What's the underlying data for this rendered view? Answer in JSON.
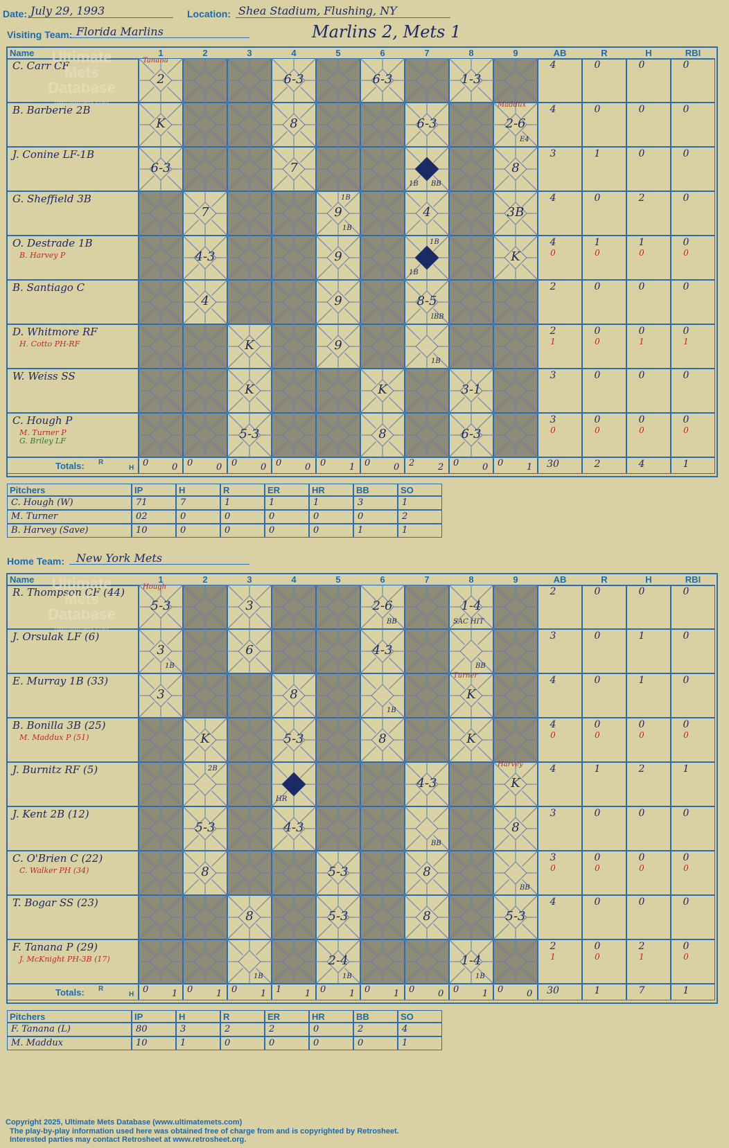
{
  "header": {
    "date_label": "Date:",
    "date": "July 29, 1993",
    "location_label": "Location:",
    "location": "Shea Stadium, Flushing, NY",
    "score": "Marlins 2, Mets 1"
  },
  "visiting": {
    "label": "Visiting Team:",
    "team": "Florida Marlins",
    "batters": [
      {
        "name": "C. Carr CF",
        "ab": "4",
        "r": "0",
        "h": "0",
        "rbi": "0"
      },
      {
        "name": "B. Barberie 2B",
        "ab": "4",
        "r": "0",
        "h": "0",
        "rbi": "0"
      },
      {
        "name": "J. Conine LF-1B",
        "ab": "3",
        "r": "1",
        "h": "0",
        "rbi": "0"
      },
      {
        "name": "G. Sheffield 3B",
        "ab": "4",
        "r": "0",
        "h": "2",
        "rbi": "0"
      },
      {
        "name": "O. Destrade 1B",
        "sub": "B. Harvey P",
        "ab": "4",
        "r": "1",
        "h": "1",
        "rbi": "0",
        "sab": "0",
        "sr": "0",
        "sh": "0",
        "srbi": "0"
      },
      {
        "name": "B. Santiago C",
        "ab": "2",
        "r": "0",
        "h": "0",
        "rbi": "0"
      },
      {
        "name": "D. Whitmore RF",
        "sub": "H. Cotto PH-RF",
        "ab": "2",
        "r": "0",
        "h": "0",
        "rbi": "0",
        "sab": "1",
        "sr": "0",
        "sh": "1",
        "srbi": "1"
      },
      {
        "name": "W. Weiss SS",
        "ab": "3",
        "r": "0",
        "h": "0",
        "rbi": "0"
      },
      {
        "name": "C. Hough P",
        "sub": "M. Turner P",
        "sub2": "G. Briley LF",
        "ab": "3",
        "r": "0",
        "h": "0",
        "rbi": "0",
        "sab": "0",
        "sr": "0",
        "sh": "0",
        "srbi": "0"
      }
    ],
    "plays": [
      {
        "r": 0,
        "c": 0,
        "t": "2",
        "note": "Tanana"
      },
      {
        "r": 0,
        "c": 3,
        "t": "6-3"
      },
      {
        "r": 0,
        "c": 5,
        "t": "6-3"
      },
      {
        "r": 0,
        "c": 7,
        "t": "1-3"
      },
      {
        "r": 1,
        "c": 0,
        "t": "K"
      },
      {
        "r": 1,
        "c": 3,
        "t": "8"
      },
      {
        "r": 1,
        "c": 6,
        "t": "6-3"
      },
      {
        "r": 1,
        "c": 8,
        "t": "2-6",
        "note": "Maddux",
        "br": "E4"
      },
      {
        "r": 2,
        "c": 0,
        "t": "6-3"
      },
      {
        "r": 2,
        "c": 3,
        "t": "7"
      },
      {
        "r": 2,
        "c": 6,
        "t": "",
        "bl": "1B",
        "br": "BB",
        "run": true
      },
      {
        "r": 2,
        "c": 8,
        "t": "8"
      },
      {
        "r": 3,
        "c": 1,
        "t": "7"
      },
      {
        "r": 3,
        "c": 4,
        "t": "9",
        "tr": "1B",
        "br": "1B"
      },
      {
        "r": 3,
        "c": 6,
        "t": "4"
      },
      {
        "r": 3,
        "c": 8,
        "t": "3B"
      },
      {
        "r": 4,
        "c": 1,
        "t": "4-3"
      },
      {
        "r": 4,
        "c": 4,
        "t": "9"
      },
      {
        "r": 4,
        "c": 6,
        "t": "",
        "tr": "1B",
        "bl": "1B",
        "run": true
      },
      {
        "r": 4,
        "c": 8,
        "t": "K"
      },
      {
        "r": 5,
        "c": 1,
        "t": "4"
      },
      {
        "r": 5,
        "c": 4,
        "t": "9"
      },
      {
        "r": 5,
        "c": 6,
        "t": "8-5",
        "br": "IBB"
      },
      {
        "r": 6,
        "c": 2,
        "t": "K"
      },
      {
        "r": 6,
        "c": 4,
        "t": "9"
      },
      {
        "r": 6,
        "c": 6,
        "t": "",
        "br": "1B"
      },
      {
        "r": 7,
        "c": 2,
        "t": "K"
      },
      {
        "r": 7,
        "c": 5,
        "t": "K"
      },
      {
        "r": 7,
        "c": 7,
        "t": "3-1"
      },
      {
        "r": 8,
        "c": 2,
        "t": "5-3"
      },
      {
        "r": 8,
        "c": 5,
        "t": "8"
      },
      {
        "r": 8,
        "c": 7,
        "t": "6-3"
      }
    ],
    "totals": {
      "label": "Totals:",
      "r_label": "R",
      "h_label": "H",
      "innings": [
        [
          "0",
          "0"
        ],
        [
          "0",
          "0"
        ],
        [
          "0",
          "0"
        ],
        [
          "0",
          "0"
        ],
        [
          "0",
          "1"
        ],
        [
          "0",
          "0"
        ],
        [
          "2",
          "2"
        ],
        [
          "0",
          "0"
        ],
        [
          "0",
          "1"
        ]
      ],
      "ab": "30",
      "r": "2",
      "h": "4",
      "rbi": "1"
    },
    "pitchers": [
      {
        "name": "C. Hough (W)",
        "ip": "71",
        "h": "7",
        "r": "1",
        "er": "1",
        "hr": "1",
        "bb": "3",
        "so": "1"
      },
      {
        "name": "M. Turner",
        "ip": "02",
        "h": "0",
        "r": "0",
        "er": "0",
        "hr": "0",
        "bb": "0",
        "so": "2"
      },
      {
        "name": "B. Harvey (Save)",
        "ip": "10",
        "h": "0",
        "r": "0",
        "er": "0",
        "hr": "0",
        "bb": "1",
        "so": "1"
      }
    ]
  },
  "home": {
    "label": "Home Team:",
    "team": "New York Mets",
    "batters": [
      {
        "name": "R. Thompson CF (44)",
        "ab": "2",
        "r": "0",
        "h": "0",
        "rbi": "0"
      },
      {
        "name": "J. Orsulak LF (6)",
        "ab": "3",
        "r": "0",
        "h": "1",
        "rbi": "0"
      },
      {
        "name": "E. Murray 1B (33)",
        "ab": "4",
        "r": "0",
        "h": "1",
        "rbi": "0"
      },
      {
        "name": "B. Bonilla 3B (25)",
        "sub": "M. Maddux P (51)",
        "ab": "4",
        "r": "0",
        "h": "0",
        "rbi": "0",
        "sab": "0",
        "sr": "0",
        "sh": "0",
        "srbi": "0"
      },
      {
        "name": "J. Burnitz RF (5)",
        "ab": "4",
        "r": "1",
        "h": "2",
        "rbi": "1"
      },
      {
        "name": "J. Kent 2B (12)",
        "ab": "3",
        "r": "0",
        "h": "0",
        "rbi": "0"
      },
      {
        "name": "C. O'Brien C (22)",
        "sub": "C. Walker PH (34)",
        "ab": "3",
        "r": "0",
        "h": "0",
        "rbi": "0",
        "sab": "0",
        "sr": "0",
        "sh": "0",
        "srbi": "0"
      },
      {
        "name": "T. Bogar SS (23)",
        "ab": "4",
        "r": "0",
        "h": "0",
        "rbi": "0"
      },
      {
        "name": "F. Tanana P (29)",
        "sub": "J. McKnight PH-3B (17)",
        "ab": "2",
        "r": "0",
        "h": "2",
        "rbi": "0",
        "sab": "1",
        "sr": "0",
        "sh": "1",
        "srbi": "0"
      }
    ],
    "plays": [
      {
        "r": 0,
        "c": 0,
        "t": "5-3",
        "note": "Hough"
      },
      {
        "r": 0,
        "c": 2,
        "t": "3"
      },
      {
        "r": 0,
        "c": 5,
        "t": "2-6",
        "br": "BB"
      },
      {
        "r": 0,
        "c": 7,
        "t": "1-4",
        "bl": "SAC HIT"
      },
      {
        "r": 1,
        "c": 0,
        "t": "3",
        "br": "1B"
      },
      {
        "r": 1,
        "c": 2,
        "t": "6"
      },
      {
        "r": 1,
        "c": 5,
        "t": "4-3"
      },
      {
        "r": 1,
        "c": 7,
        "t": "",
        "br": "BB"
      },
      {
        "r": 2,
        "c": 0,
        "t": "3"
      },
      {
        "r": 2,
        "c": 3,
        "t": "8"
      },
      {
        "r": 2,
        "c": 5,
        "t": "",
        "br": "1B"
      },
      {
        "r": 2,
        "c": 7,
        "t": "K",
        "note": "Turner"
      },
      {
        "r": 3,
        "c": 1,
        "t": "K"
      },
      {
        "r": 3,
        "c": 3,
        "t": "5-3"
      },
      {
        "r": 3,
        "c": 5,
        "t": "8"
      },
      {
        "r": 3,
        "c": 7,
        "t": "K"
      },
      {
        "r": 4,
        "c": 1,
        "t": "",
        "tr": "2B"
      },
      {
        "r": 4,
        "c": 3,
        "t": "",
        "bl": "HR",
        "run": true
      },
      {
        "r": 4,
        "c": 6,
        "t": "4-3"
      },
      {
        "r": 4,
        "c": 8,
        "t": "K",
        "note": "Harvey"
      },
      {
        "r": 5,
        "c": 1,
        "t": "5-3"
      },
      {
        "r": 5,
        "c": 3,
        "t": "4-3"
      },
      {
        "r": 5,
        "c": 6,
        "t": "",
        "br": "BB"
      },
      {
        "r": 5,
        "c": 8,
        "t": "8"
      },
      {
        "r": 6,
        "c": 1,
        "t": "8"
      },
      {
        "r": 6,
        "c": 4,
        "t": "5-3"
      },
      {
        "r": 6,
        "c": 6,
        "t": "8"
      },
      {
        "r": 6,
        "c": 8,
        "t": "",
        "br": "BB"
      },
      {
        "r": 7,
        "c": 2,
        "t": "8"
      },
      {
        "r": 7,
        "c": 4,
        "t": "5-3"
      },
      {
        "r": 7,
        "c": 6,
        "t": "8"
      },
      {
        "r": 7,
        "c": 8,
        "t": "5-3"
      },
      {
        "r": 8,
        "c": 2,
        "t": "",
        "br": "1B"
      },
      {
        "r": 8,
        "c": 4,
        "t": "2-4",
        "br": "1B"
      },
      {
        "r": 8,
        "c": 7,
        "t": "1-4",
        "br": "1B"
      }
    ],
    "totals": {
      "label": "Totals:",
      "r_label": "R",
      "h_label": "H",
      "innings": [
        [
          "0",
          "1"
        ],
        [
          "0",
          "1"
        ],
        [
          "0",
          "1"
        ],
        [
          "1",
          "1"
        ],
        [
          "0",
          "1"
        ],
        [
          "0",
          "1"
        ],
        [
          "0",
          "0"
        ],
        [
          "0",
          "1"
        ],
        [
          "0",
          "0"
        ]
      ],
      "ab": "30",
      "r": "1",
      "h": "7",
      "rbi": "1"
    },
    "pitchers": [
      {
        "name": "F. Tanana (L)",
        "ip": "80",
        "h": "3",
        "r": "2",
        "er": "2",
        "hr": "0",
        "bb": "2",
        "so": "4"
      },
      {
        "name": "M. Maddux",
        "ip": "10",
        "h": "1",
        "r": "0",
        "er": "0",
        "hr": "0",
        "bb": "0",
        "so": "1"
      }
    ]
  },
  "columns": {
    "name": "Name",
    "innings": [
      "1",
      "2",
      "3",
      "4",
      "5",
      "6",
      "7",
      "8",
      "9"
    ],
    "stats": [
      "AB",
      "R",
      "H",
      "RBI"
    ]
  },
  "pitch_cols": [
    "Pitchers",
    "IP",
    "H",
    "R",
    "ER",
    "HR",
    "BB",
    "SO"
  ],
  "watermark": {
    "line1": "Ultimate",
    "line2": "Mets",
    "line3": "Database",
    "line4": "ultimatemets.com"
  },
  "footer": {
    "line1": "Copyright 2025, Ultimate Mets Database (www.ultimatemets.com)",
    "line2": "The play-by-play information used here was obtained free of charge from and is copyrighted by Retrosheet.",
    "line3": "Interested parties may contact Retrosheet at www.retrosheet.org."
  },
  "colors": {
    "grid": "#2a6db5",
    "bg": "#d9d0a3",
    "gray": "#8e8b78",
    "ink": "#1c2a66",
    "red": "#c0282c"
  }
}
